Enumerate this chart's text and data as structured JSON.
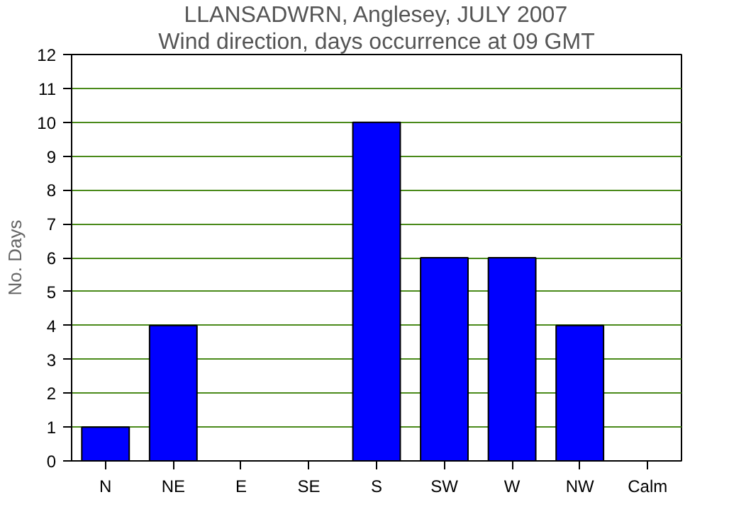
{
  "chart_data": {
    "type": "bar",
    "title": "LLANSADWRN, Anglesey, JULY 2007",
    "subtitle": "Wind direction, days occurrence at 09 GMT",
    "ylabel": "No. Days",
    "categories": [
      "N",
      "NE",
      "E",
      "SE",
      "S",
      "SW",
      "W",
      "NW",
      "Calm"
    ],
    "values": [
      1,
      4,
      0,
      0,
      10,
      6,
      6,
      4,
      0
    ],
    "color": "#0000ff",
    "ylim": [
      0,
      12
    ],
    "yticks": [
      0,
      1,
      2,
      3,
      4,
      5,
      6,
      7,
      8,
      9,
      10,
      11,
      12
    ],
    "grid": "y"
  }
}
